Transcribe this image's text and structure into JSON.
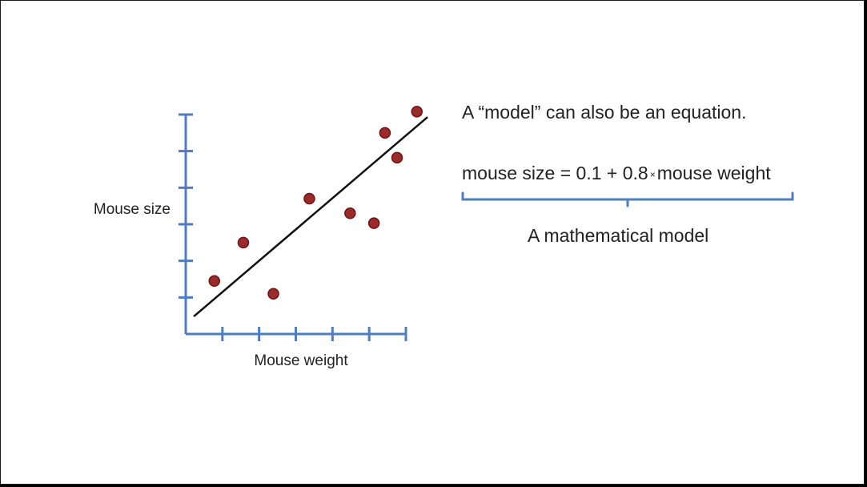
{
  "slide": {
    "statement": "A “model” can also be an equation.",
    "equation": {
      "lhs": "mouse size = 0.1 + 0.8",
      "times": "×",
      "rhs": "mouse weight"
    },
    "caption": "A mathematical model"
  },
  "colors": {
    "axis": "#4f7dbf",
    "point": "#9b2a2a",
    "point_edge": "#6e1414",
    "line": "#111111",
    "text": "#222222"
  },
  "chart_data": {
    "type": "scatter",
    "xlabel": "Mouse weight",
    "ylabel": "Mouse size",
    "xlim": [
      0,
      6
    ],
    "ylim": [
      0,
      6
    ],
    "x_ticks": 6,
    "y_ticks": 6,
    "grid": false,
    "points": [
      {
        "x": 0.78,
        "y": 1.45
      },
      {
        "x": 1.57,
        "y": 2.5
      },
      {
        "x": 2.39,
        "y": 1.1
      },
      {
        "x": 3.37,
        "y": 3.7
      },
      {
        "x": 4.48,
        "y": 3.3
      },
      {
        "x": 5.13,
        "y": 3.03
      },
      {
        "x": 5.43,
        "y": 5.5
      },
      {
        "x": 5.76,
        "y": 4.82
      },
      {
        "x": 6.3,
        "y": 6.08
      }
    ],
    "fit_line": {
      "x0": 0.22,
      "y0": 0.48,
      "x1": 6.59,
      "y1": 5.93
    }
  }
}
